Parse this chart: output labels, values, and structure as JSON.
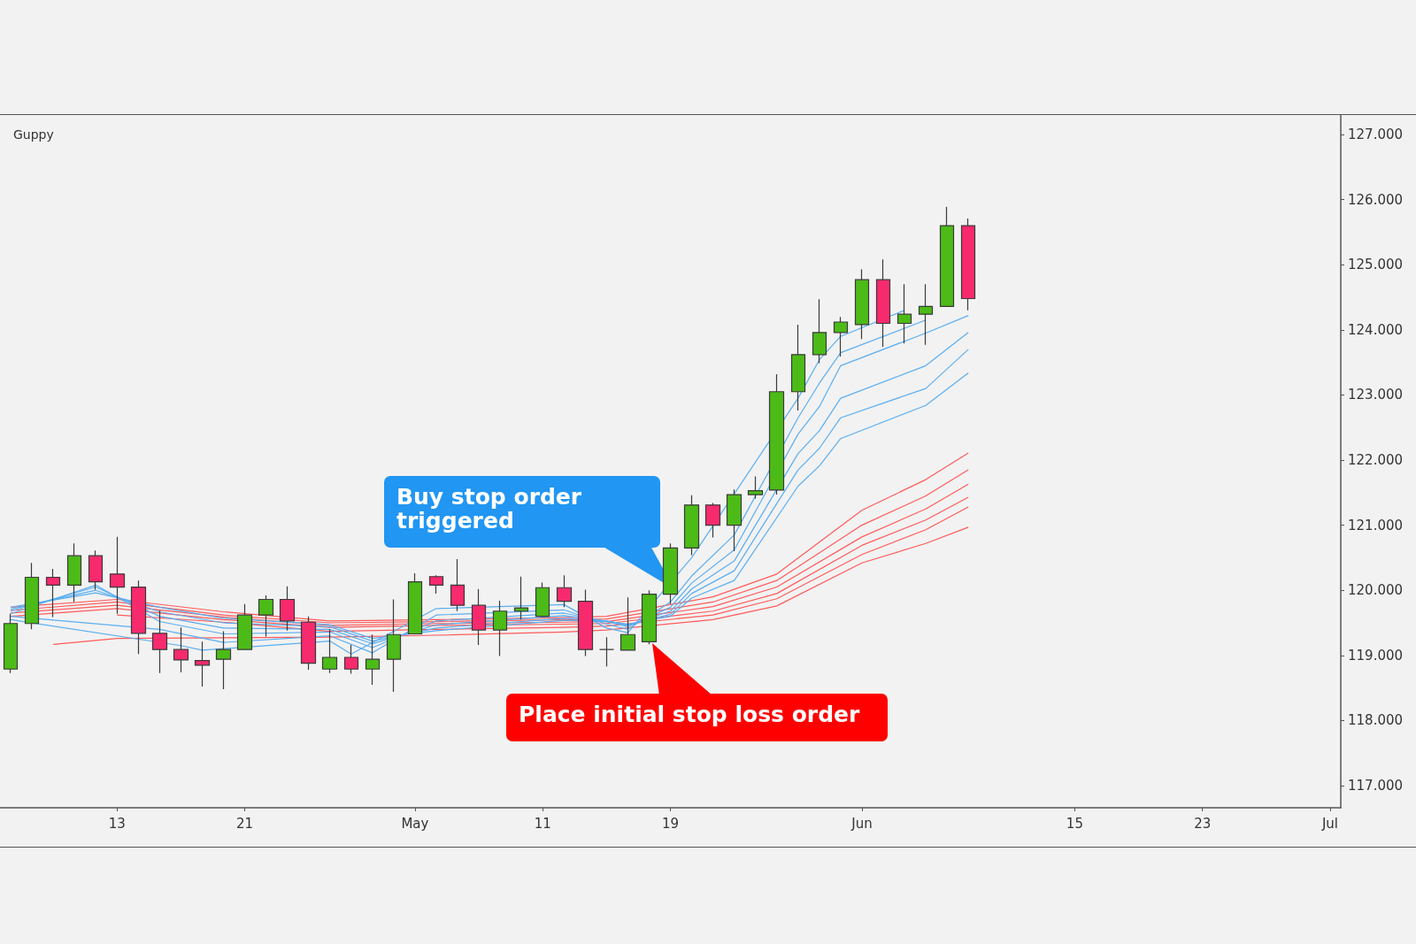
{
  "chart_data": {
    "type": "candlestick",
    "title": "Guppy",
    "categories": [
      null,
      null,
      null,
      null,
      null,
      "13",
      null,
      null,
      null,
      null,
      null,
      "21",
      null,
      null,
      null,
      null,
      null,
      null,
      null,
      "May",
      null,
      null,
      null,
      null,
      null,
      "11",
      null,
      null,
      null,
      null,
      null,
      "19",
      null,
      null,
      null,
      null,
      null,
      null,
      null,
      null,
      "Jun",
      null,
      null,
      null,
      null,
      null,
      null,
      null,
      null,
      null,
      "15",
      null,
      null,
      null,
      null,
      null,
      "23",
      null,
      null,
      null,
      null,
      null,
      "Jul"
    ],
    "ohlc": [
      [
        118.79,
        119.64,
        118.73,
        119.49
      ],
      [
        119.49,
        120.42,
        119.4,
        120.2
      ],
      [
        120.2,
        120.33,
        119.59,
        120.08
      ],
      [
        120.08,
        120.72,
        119.82,
        120.53
      ],
      [
        120.53,
        120.61,
        120.01,
        120.13
      ],
      [
        120.25,
        120.82,
        119.64,
        120.05
      ],
      [
        120.05,
        120.15,
        119.02,
        119.34
      ],
      [
        119.34,
        119.69,
        118.73,
        119.09
      ],
      [
        119.09,
        119.43,
        118.74,
        118.93
      ],
      [
        118.92,
        119.21,
        118.52,
        118.85
      ],
      [
        118.94,
        119.37,
        118.48,
        119.09
      ],
      [
        119.09,
        119.79,
        119.09,
        119.62
      ],
      [
        119.62,
        119.92,
        119.29,
        119.86
      ],
      [
        119.86,
        120.06,
        119.38,
        119.53
      ],
      [
        119.51,
        119.6,
        118.78,
        118.88
      ],
      [
        118.79,
        119.4,
        118.73,
        118.97
      ],
      [
        118.97,
        119.16,
        118.72,
        118.79
      ],
      [
        118.79,
        119.32,
        118.55,
        118.94
      ],
      [
        118.94,
        119.86,
        118.44,
        119.32
      ],
      [
        119.33,
        120.26,
        119.33,
        120.13
      ],
      [
        120.21,
        120.23,
        119.95,
        120.08
      ],
      [
        120.08,
        120.48,
        119.68,
        119.77
      ],
      [
        119.77,
        120.02,
        119.16,
        119.39
      ],
      [
        119.39,
        119.84,
        118.99,
        119.68
      ],
      [
        119.68,
        120.21,
        119.55,
        119.73
      ],
      [
        119.6,
        120.12,
        119.59,
        120.04
      ],
      [
        120.04,
        120.23,
        119.74,
        119.83
      ],
      [
        119.83,
        120.01,
        118.99,
        119.09
      ],
      [
        119.09,
        119.28,
        118.83,
        119.09
      ],
      [
        119.08,
        119.89,
        119.08,
        119.32
      ],
      [
        119.21,
        120.0,
        119.17,
        119.94
      ],
      [
        119.94,
        120.72,
        119.79,
        120.65
      ],
      [
        120.65,
        121.46,
        120.54,
        121.31
      ],
      [
        121.31,
        121.34,
        120.81,
        121.0
      ],
      [
        121.0,
        121.55,
        120.6,
        121.47
      ],
      [
        121.47,
        121.75,
        121.41,
        121.53
      ],
      [
        121.54,
        123.32,
        121.47,
        123.05
      ],
      [
        123.05,
        124.08,
        122.76,
        123.62
      ],
      [
        123.62,
        124.47,
        123.49,
        123.96
      ],
      [
        123.96,
        124.2,
        123.59,
        124.12
      ],
      [
        124.08,
        124.93,
        123.86,
        124.77
      ],
      [
        124.77,
        125.08,
        123.74,
        124.1
      ],
      [
        124.1,
        124.7,
        123.79,
        124.24
      ],
      [
        124.24,
        124.7,
        123.77,
        124.36
      ],
      [
        124.36,
        125.89,
        124.35,
        125.6
      ],
      [
        125.6,
        125.71,
        124.3,
        124.48
      ],
      null,
      null,
      null,
      null,
      null,
      null,
      null,
      null,
      null,
      null,
      null,
      null,
      null,
      null,
      null,
      null,
      null
    ],
    "colors": [
      "#4cbb17",
      "#4cbb17",
      "#f72a6e",
      "#4cbb17",
      "#f72a6e",
      "#f72a6e",
      "#f72a6e",
      "#f72a6e",
      "#f72a6e",
      "#f72a6e",
      "#4cbb17",
      "#4cbb17",
      "#4cbb17",
      "#f72a6e",
      "#f72a6e",
      "#4cbb17",
      "#f72a6e",
      "#4cbb17",
      "#4cbb17",
      "#4cbb17",
      "#f72a6e",
      "#f72a6e",
      "#f72a6e",
      "#4cbb17",
      "#4cbb17",
      "#4cbb17",
      "#f72a6e",
      "#f72a6e",
      "#3a3a3a",
      "#4cbb17",
      "#4cbb17",
      "#4cbb17",
      "#4cbb17",
      "#f72a6e",
      "#4cbb17",
      "#4cbb17",
      "#4cbb17",
      "#4cbb17",
      "#4cbb17",
      "#4cbb17",
      "#4cbb17",
      "#f72a6e",
      "#4cbb17",
      "#4cbb17",
      "#4cbb17",
      "#f72a6e",
      null,
      null,
      null,
      null,
      null,
      null,
      null,
      null,
      null,
      null,
      null,
      null,
      null,
      null,
      null,
      null,
      null
    ],
    "series": [
      {
        "type": "line",
        "color": "#ff5a5a",
        "values": [
          119.74,
          null,
          null,
          null,
          null,
          119.86,
          null,
          null,
          null,
          null,
          119.67,
          null,
          null,
          null,
          null,
          119.53,
          null,
          null,
          null,
          null,
          119.55,
          null,
          null,
          null,
          null,
          null,
          119.58,
          null,
          119.6,
          null,
          null,
          null,
          null,
          119.9,
          null,
          null,
          120.25,
          null,
          null,
          null,
          121.23,
          null,
          null,
          121.7,
          null,
          122.11,
          null,
          null,
          null,
          null,
          null,
          null,
          null,
          null,
          null,
          null,
          null,
          null,
          null,
          null,
          null,
          null,
          null
        ]
      },
      {
        "type": "line",
        "color": "#ff5a5a",
        "values": [
          119.69,
          null,
          null,
          null,
          null,
          119.82,
          null,
          null,
          null,
          null,
          119.62,
          null,
          null,
          null,
          null,
          119.5,
          null,
          null,
          null,
          null,
          119.52,
          null,
          null,
          null,
          null,
          null,
          119.55,
          null,
          119.56,
          null,
          null,
          null,
          null,
          119.82,
          null,
          null,
          120.15,
          null,
          null,
          null,
          121.0,
          null,
          null,
          121.45,
          null,
          121.85,
          null,
          null,
          null,
          null,
          null,
          null,
          null,
          null,
          null,
          null,
          null,
          null,
          null,
          null,
          null,
          null,
          null
        ]
      },
      {
        "type": "line",
        "color": "#ff5a5a",
        "values": [
          119.65,
          null,
          null,
          null,
          null,
          119.77,
          null,
          null,
          null,
          null,
          119.59,
          null,
          null,
          null,
          null,
          119.46,
          null,
          null,
          null,
          null,
          119.49,
          null,
          null,
          null,
          null,
          null,
          119.51,
          null,
          119.52,
          null,
          null,
          null,
          null,
          119.75,
          null,
          null,
          120.05,
          null,
          null,
          null,
          120.82,
          null,
          null,
          121.25,
          null,
          121.63,
          null,
          null,
          null,
          null,
          null,
          null,
          null,
          null,
          null,
          null,
          null,
          null,
          null,
          null,
          null,
          null,
          null
        ]
      },
      {
        "type": "line",
        "color": "#ff5a5a",
        "values": [
          119.6,
          null,
          null,
          null,
          null,
          119.72,
          null,
          null,
          null,
          null,
          119.55,
          null,
          null,
          null,
          null,
          119.43,
          null,
          null,
          null,
          null,
          119.46,
          null,
          null,
          null,
          null,
          null,
          119.48,
          null,
          119.49,
          null,
          null,
          null,
          null,
          119.68,
          null,
          null,
          119.95,
          null,
          null,
          null,
          120.69,
          null,
          null,
          121.08,
          null,
          121.43,
          null,
          null,
          null,
          null,
          null,
          null,
          null,
          null,
          null,
          null,
          null,
          null,
          null,
          null,
          null,
          null,
          null
        ]
      },
      {
        "type": "line",
        "color": "#ff5a5a",
        "values": [
          null,
          null,
          null,
          null,
          null,
          119.62,
          null,
          null,
          null,
          null,
          119.51,
          null,
          null,
          null,
          null,
          119.37,
          null,
          null,
          null,
          null,
          119.4,
          null,
          null,
          null,
          null,
          null,
          119.43,
          null,
          119.45,
          null,
          null,
          null,
          null,
          119.62,
          null,
          null,
          119.87,
          null,
          null,
          null,
          120.55,
          null,
          null,
          120.93,
          null,
          121.28,
          null,
          null,
          null,
          null,
          null,
          null,
          null,
          null,
          null,
          null,
          null,
          null,
          null,
          null,
          null,
          null,
          null
        ]
      },
      {
        "type": "line",
        "color": "#ff5a5a",
        "values": [
          null,
          null,
          119.17,
          null,
          null,
          119.26,
          null,
          null,
          null,
          null,
          119.27,
          null,
          null,
          null,
          null,
          119.28,
          null,
          null,
          null,
          null,
          119.31,
          null,
          null,
          null,
          null,
          null,
          119.36,
          null,
          119.39,
          null,
          null,
          null,
          null,
          119.55,
          null,
          null,
          119.76,
          null,
          null,
          null,
          120.42,
          null,
          null,
          120.72,
          null,
          120.97,
          null,
          null,
          null,
          null,
          null,
          null,
          null,
          null,
          null,
          null,
          null,
          null,
          null,
          null,
          null,
          null,
          null
        ]
      },
      {
        "type": "line",
        "color": "#5aaef0",
        "values": [
          119.55,
          null,
          null,
          null,
          null,
          null,
          null,
          null,
          119.15,
          119.08,
          null,
          null,
          null,
          null,
          null,
          119.22,
          119.02,
          null,
          null,
          null,
          119.72,
          null,
          null,
          null,
          null,
          null,
          119.78,
          null,
          119.42,
          119.35,
          null,
          null,
          120.5,
          null,
          null,
          null,
          null,
          122.95,
          123.54,
          123.9,
          null,
          null,
          124.3,
          null,
          null,
          null,
          null,
          null,
          null,
          null,
          null,
          null,
          null,
          null,
          null,
          null,
          null,
          null,
          null,
          null,
          null,
          null,
          null
        ]
      },
      {
        "type": "line",
        "color": "#5aaef0",
        "values": [
          119.6,
          null,
          null,
          null,
          null,
          null,
          null,
          119.4,
          null,
          null,
          119.2,
          null,
          null,
          null,
          null,
          119.3,
          null,
          119.04,
          null,
          null,
          119.62,
          null,
          null,
          null,
          null,
          null,
          119.7,
          null,
          119.48,
          119.4,
          null,
          119.82,
          120.22,
          null,
          120.85,
          null,
          null,
          122.65,
          123.18,
          123.65,
          null,
          null,
          null,
          124.15,
          null,
          null,
          null,
          null,
          null,
          null,
          null,
          null,
          null,
          null,
          null,
          null,
          null,
          null,
          null,
          null,
          null,
          null,
          null
        ]
      },
      {
        "type": "line",
        "color": "#5aaef0",
        "values": [
          119.64,
          null,
          null,
          null,
          120.08,
          null,
          null,
          119.52,
          null,
          null,
          119.33,
          null,
          null,
          null,
          null,
          119.36,
          null,
          119.12,
          null,
          null,
          119.53,
          null,
          null,
          null,
          null,
          null,
          119.65,
          null,
          119.52,
          119.44,
          null,
          119.74,
          120.11,
          null,
          120.62,
          null,
          null,
          122.4,
          122.82,
          123.45,
          null,
          null,
          null,
          123.95,
          null,
          124.22,
          null,
          null,
          null,
          null,
          null,
          null,
          null,
          null,
          null,
          null,
          null,
          null,
          null,
          null,
          null,
          null,
          null
        ]
      },
      {
        "type": "line",
        "color": "#5aaef0",
        "values": [
          119.68,
          null,
          null,
          null,
          120.05,
          null,
          null,
          119.6,
          null,
          null,
          119.42,
          null,
          null,
          null,
          null,
          119.4,
          null,
          119.18,
          null,
          null,
          119.47,
          null,
          null,
          null,
          null,
          null,
          119.61,
          null,
          119.53,
          119.46,
          null,
          119.68,
          120.02,
          null,
          120.45,
          null,
          null,
          122.1,
          122.45,
          122.95,
          null,
          null,
          null,
          123.45,
          null,
          123.96,
          null,
          null,
          null,
          null,
          null,
          null,
          null,
          null,
          null,
          null,
          null,
          null,
          null,
          null,
          null,
          null,
          null
        ]
      },
      {
        "type": "line",
        "color": "#5aaef0",
        "values": [
          119.71,
          null,
          null,
          null,
          120.0,
          null,
          null,
          119.67,
          null,
          null,
          119.5,
          null,
          null,
          null,
          null,
          119.44,
          null,
          119.22,
          null,
          null,
          119.42,
          null,
          null,
          null,
          null,
          null,
          119.57,
          null,
          119.53,
          119.47,
          null,
          119.63,
          119.95,
          null,
          120.3,
          null,
          null,
          121.85,
          122.18,
          122.65,
          null,
          null,
          null,
          123.1,
          null,
          123.7,
          null,
          null,
          null,
          null,
          null,
          null,
          null,
          null,
          null,
          null,
          null,
          null,
          null,
          null,
          null,
          null,
          null
        ]
      },
      {
        "type": "line",
        "color": "#5aaef0",
        "values": [
          119.74,
          null,
          null,
          null,
          119.96,
          null,
          null,
          119.74,
          null,
          null,
          119.57,
          null,
          null,
          null,
          null,
          119.47,
          null,
          119.26,
          null,
          null,
          119.38,
          null,
          null,
          null,
          null,
          null,
          119.54,
          null,
          119.52,
          119.48,
          null,
          119.6,
          119.88,
          null,
          120.15,
          null,
          null,
          121.6,
          121.91,
          122.33,
          null,
          null,
          null,
          122.84,
          null,
          123.34,
          null,
          null,
          null,
          null,
          null,
          null,
          null,
          null,
          null,
          null,
          null,
          null,
          null,
          null,
          null,
          null,
          null
        ]
      }
    ],
    "ylim": [
      116.66,
      127.3
    ],
    "yticks": [
      {
        "value": 117,
        "label": "117.000"
      },
      {
        "value": 118,
        "label": "118.000"
      },
      {
        "value": 119,
        "label": "119.000"
      },
      {
        "value": 120,
        "label": "120.000"
      },
      {
        "value": 121,
        "label": "121.000"
      },
      {
        "value": 122,
        "label": "122.000"
      },
      {
        "value": 123,
        "label": "123.000"
      },
      {
        "value": 124,
        "label": "124.000"
      },
      {
        "value": 125,
        "label": "125.000"
      },
      {
        "value": 126,
        "label": "126.000"
      },
      {
        "value": 127,
        "label": "127.000"
      }
    ],
    "annotations": [
      "Buy stop order triggered",
      "Place initial stop loss order"
    ],
    "grid": false
  }
}
